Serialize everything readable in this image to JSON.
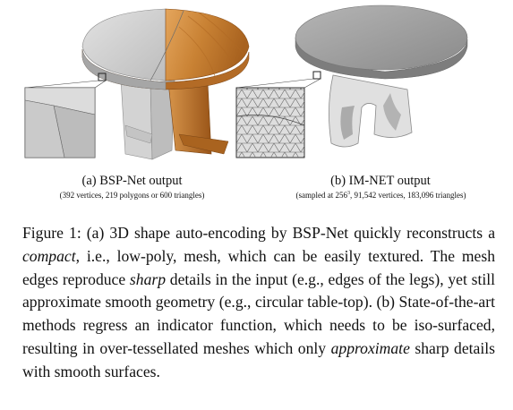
{
  "panel_a": {
    "caption": "(a) BSP-Net output",
    "detail": "(392 vertices, 219 polygons or 600 triangles)"
  },
  "panel_b": {
    "caption": "(b) IM-NET output",
    "detail_prefix": "(sampled at 256",
    "detail_sup": "3",
    "detail_suffix": ", 91,542 vertices, 183,096 triangles)"
  },
  "figure_caption": {
    "p1": "Figure 1: (a) 3D shape auto-encoding by BSP-Net quickly reconstructs a ",
    "em1": "compact",
    "p2": ", i.e., low-poly, mesh, which can be easily textured.  The mesh edges reproduce ",
    "em2": "sharp",
    "p3": " details in the input (e.g., edges of the legs), yet still approximate smooth geometry (e.g., circular table-top). (b) State-of-the-art methods regress an indicator function, which needs to be iso-surfaced, resulting in over-tessellated meshes which only ",
    "em3": "approximate",
    "p4": " sharp details with smooth surfaces."
  },
  "colors": {
    "wood": "#c8833a",
    "grey_mesh": "#c7c7c7",
    "imnet_grey": "#9a9a9a"
  }
}
